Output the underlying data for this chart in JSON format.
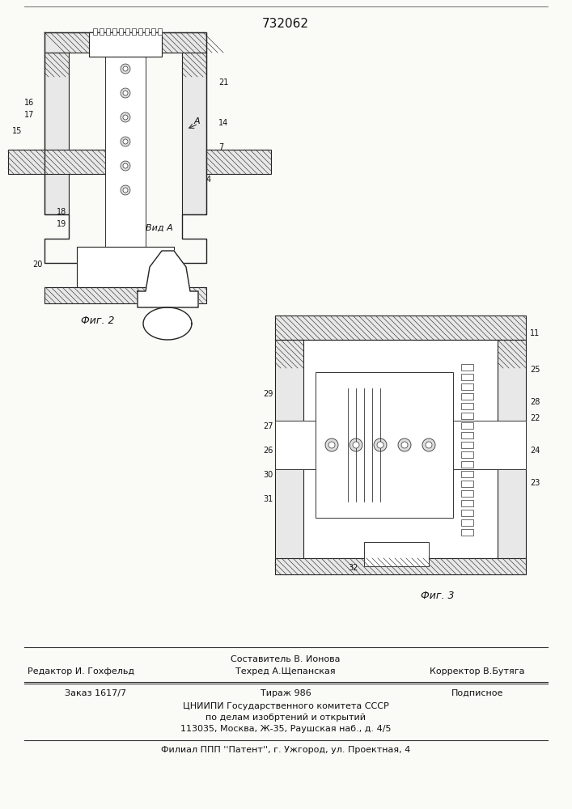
{
  "patent_number": "732062",
  "background_color": "#f5f5f0",
  "page_color": "#fafaf7",
  "title_text": "732062",
  "fig2_label": "Фиг. 2",
  "fig3_label": "Фиг. 3",
  "vid_a_label": "Вид A",
  "footer_line1_center": "Составитель В. Ионова",
  "footer_line2_left": "Редактор И. Гохфельд",
  "footer_line2_center": "Техред А.Щепанская",
  "footer_line2_right": "Корректор В.Бутяга",
  "footer_line3_left": "Заказ 1617/7",
  "footer_line3_center": "Тираж 986",
  "footer_line3_right": "Подписное",
  "footer_line4": "ЦНИИПИ Государственного комитета СССР",
  "footer_line5": "по делам изобртений и открытий",
  "footer_line6": "113035, Москва, Ж-35, Раушская наб., д. 4/5",
  "footer_line7": "Филиал ППП ''Патент'', г. Ужгород, ул. Проектная, 4",
  "num_labels_fig2": [
    "4",
    "7",
    "14",
    "15",
    "16",
    "17",
    "18",
    "19",
    "20",
    "21"
  ],
  "num_labels_fig3": [
    "11",
    "22",
    "23",
    "24",
    "25",
    "26",
    "27",
    "28",
    "29",
    "30",
    "31",
    "32"
  ]
}
